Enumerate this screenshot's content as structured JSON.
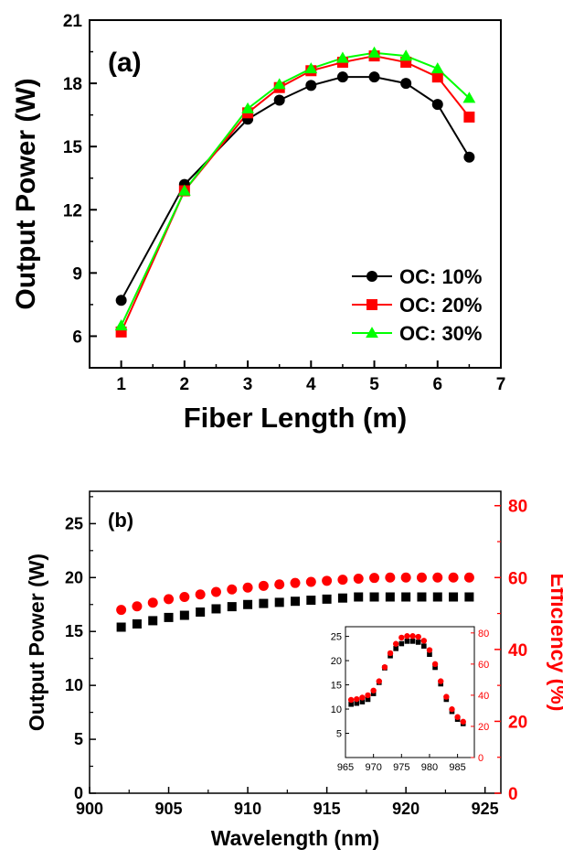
{
  "chart_data": [
    {
      "type": "line",
      "panel_label": "(a)",
      "xlabel": "Fiber Length (m)",
      "ylabel": "Output Power (W)",
      "xlim": [
        0.5,
        7
      ],
      "ylim": [
        4.5,
        21
      ],
      "xticks": [
        1,
        2,
        3,
        4,
        5,
        6,
        7
      ],
      "yticks": [
        6,
        9,
        12,
        15,
        18,
        21
      ],
      "legend_position": "bottom-right",
      "x": [
        1,
        2,
        3,
        3.5,
        4,
        4.5,
        5,
        5.5,
        6,
        6.5
      ],
      "series": [
        {
          "name": "OC: 10%",
          "color": "#000000",
          "marker": "circle",
          "values": [
            7.7,
            13.2,
            16.3,
            17.2,
            17.9,
            18.3,
            18.3,
            18.0,
            17.0,
            14.5
          ]
        },
        {
          "name": "OC: 20%",
          "color": "#ff0000",
          "marker": "square",
          "values": [
            6.2,
            12.9,
            16.6,
            17.8,
            18.6,
            19.0,
            19.3,
            19.0,
            18.3,
            16.4
          ]
        },
        {
          "name": "OC: 30%",
          "color": "#00ff00",
          "marker": "triangle",
          "values": [
            6.5,
            12.9,
            16.8,
            17.95,
            18.7,
            19.2,
            19.45,
            19.3,
            18.7,
            17.3
          ]
        }
      ]
    },
    {
      "type": "scatter",
      "panel_label": "(b)",
      "xlabel": "Wavelength (nm)",
      "ylabel": "Output Power (W)",
      "y2label": "Efficiency (%)",
      "xlim": [
        900,
        926
      ],
      "ylim": [
        0,
        28
      ],
      "y2lim": [
        0,
        84
      ],
      "xticks": [
        900,
        905,
        910,
        915,
        920,
        925
      ],
      "yticks": [
        0,
        5,
        10,
        15,
        20,
        25
      ],
      "y2ticks": [
        0,
        20,
        40,
        60,
        80
      ],
      "x": [
        902,
        903,
        904,
        905,
        906,
        907,
        908,
        909,
        910,
        911,
        912,
        913,
        914,
        915,
        916,
        917,
        918,
        919,
        920,
        921,
        922,
        923,
        924
      ],
      "series": [
        {
          "name": "Output Power",
          "axis": "left",
          "color": "#000000",
          "marker": "square",
          "values": [
            15.4,
            15.7,
            16.0,
            16.3,
            16.5,
            16.8,
            17.1,
            17.3,
            17.5,
            17.6,
            17.7,
            17.8,
            17.9,
            18.0,
            18.1,
            18.2,
            18.2,
            18.2,
            18.2,
            18.2,
            18.2,
            18.2,
            18.2
          ]
        },
        {
          "name": "Efficiency",
          "axis": "right",
          "color": "#ff0000",
          "marker": "circle",
          "values": [
            51.0,
            52.0,
            53.0,
            54.0,
            54.6,
            55.3,
            56.0,
            56.7,
            57.2,
            57.7,
            58.1,
            58.5,
            58.8,
            59.1,
            59.4,
            59.7,
            59.9,
            60.0,
            60.0,
            60.0,
            60.0,
            60.0,
            60.0
          ]
        }
      ],
      "inset": {
        "type": "scatter",
        "xlim": [
          965,
          988
        ],
        "ylim": [
          0,
          27
        ],
        "y2lim": [
          0,
          84
        ],
        "xticks": [
          965,
          970,
          975,
          980,
          985
        ],
        "yticks": [
          5,
          10,
          15,
          20,
          25
        ],
        "y2ticks": [
          0,
          20,
          40,
          60,
          80
        ],
        "x": [
          966,
          967,
          968,
          969,
          970,
          971,
          972,
          973,
          974,
          975,
          976,
          977,
          978,
          979,
          980,
          981,
          982,
          983,
          984,
          985,
          986
        ],
        "series": [
          {
            "name": "Output Power",
            "axis": "left",
            "color": "#000000",
            "marker": "square",
            "values": [
              11.0,
              11.2,
              11.5,
              12.0,
              13.2,
              15.5,
              18.5,
              21.0,
              22.5,
              23.5,
              24.0,
              24.0,
              23.8,
              23.0,
              21.3,
              18.6,
              15.2,
              12.0,
              9.5,
              7.9,
              7.0
            ]
          },
          {
            "name": "Efficiency",
            "axis": "right",
            "color": "#ff0000",
            "marker": "circle",
            "values": [
              37,
              37.5,
              38.5,
              40,
              43,
              49,
              58,
              67,
              73,
              77,
              78,
              78,
              77.5,
              75,
              69,
              60,
              49,
              39,
              31,
              26,
              23
            ]
          }
        ]
      }
    }
  ]
}
